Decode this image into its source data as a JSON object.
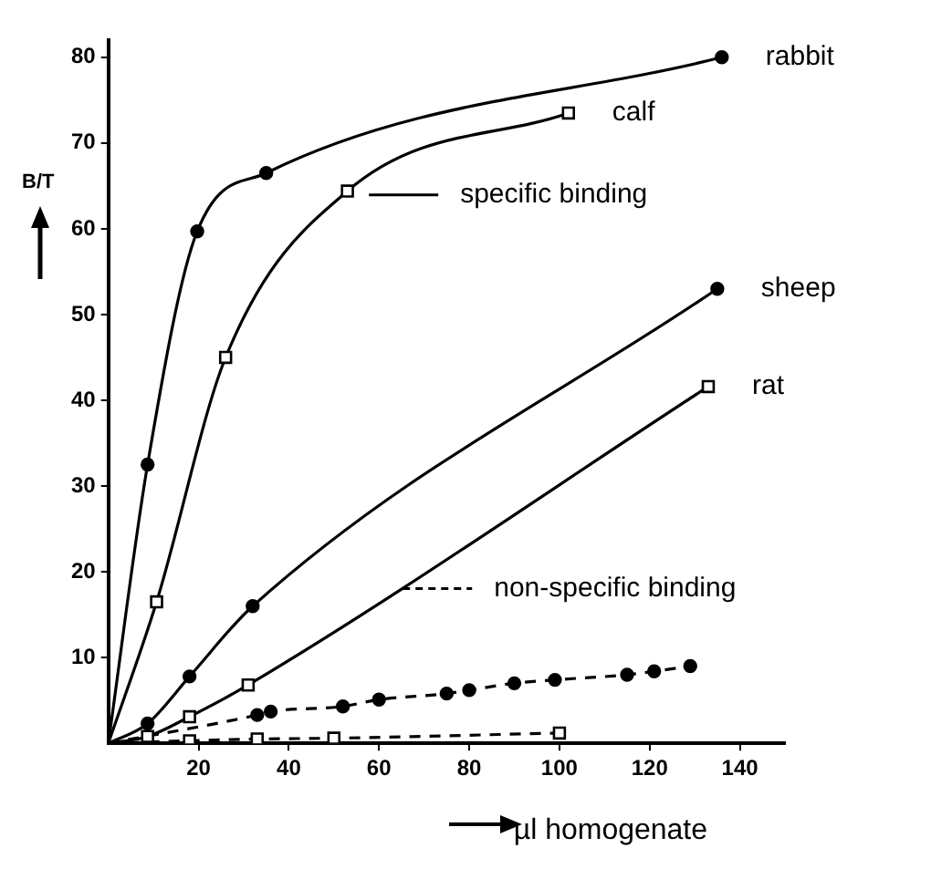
{
  "chart_data": {
    "type": "line",
    "xlabel": "µl homogenate",
    "ylabel": "B/T",
    "annotations": [
      "specific binding",
      "non-specific binding"
    ],
    "xlim": [
      0,
      150
    ],
    "xticks": [
      20,
      40,
      60,
      80,
      100,
      120,
      140
    ],
    "ylim": [
      0,
      82
    ],
    "yticks": [
      10,
      20,
      30,
      40,
      50,
      60,
      70,
      80
    ],
    "grid": false,
    "legend": false,
    "series": [
      {
        "name": "rabbit",
        "color": "#000000",
        "marker": "circle",
        "line_style": "solid",
        "x": [
          0,
          8.7,
          19.7,
          35,
          136
        ],
        "values": [
          0,
          32.5,
          59.7,
          66.5,
          80
        ]
      },
      {
        "name": "calf",
        "color": "#000000",
        "marker": "square",
        "line_style": "solid",
        "x": [
          0,
          10.7,
          26,
          53,
          102
        ],
        "values": [
          0,
          16.5,
          45,
          64.4,
          73.5
        ]
      },
      {
        "name": "sheep",
        "color": "#000000",
        "marker": "circle",
        "line_style": "solid",
        "x": [
          0,
          8.7,
          18,
          32,
          135
        ],
        "values": [
          0,
          2.3,
          7.8,
          16,
          53
        ]
      },
      {
        "name": "rat",
        "color": "#000000",
        "marker": "square",
        "line_style": "solid",
        "x": [
          0,
          8.7,
          18,
          31,
          133
        ],
        "values": [
          0,
          0.8,
          3.1,
          6.8,
          41.6
        ]
      },
      {
        "color": "#000000",
        "marker": "circle",
        "line_style": "dashed",
        "x": [
          0,
          33,
          36,
          52,
          60,
          75,
          80,
          90,
          99,
          115,
          121,
          129
        ],
        "values": [
          0,
          3.3,
          3.7,
          4.3,
          5.1,
          5.8,
          6.2,
          7,
          7.4,
          8,
          8.4,
          9
        ]
      },
      {
        "color": "#000000",
        "marker": "square",
        "line_style": "dashed",
        "x": [
          0,
          18,
          33,
          50,
          100
        ],
        "values": [
          0,
          0.3,
          0.5,
          0.6,
          1.2
        ]
      }
    ]
  }
}
